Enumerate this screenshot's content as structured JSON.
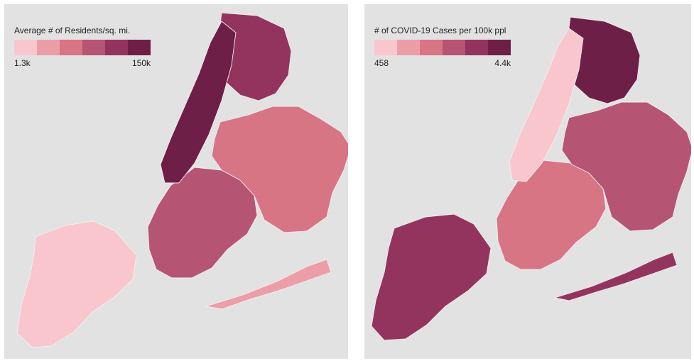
{
  "maps": [
    {
      "legend": {
        "title": "Average # of Residents/sq. mi.",
        "min_label": "1.3k",
        "max_label": "150k",
        "colors": [
          "#f8c6cc",
          "#ec9ea8",
          "#d87585",
          "#b65473",
          "#93345e",
          "#6e1f47"
        ]
      },
      "borough_levels": {
        "staten_island": 0,
        "rockaways": 1,
        "queens": 2,
        "brooklyn": 3,
        "bronx": 4,
        "manhattan": 5
      }
    },
    {
      "legend": {
        "title": "# of COVID-19 Cases per 100k ppl",
        "min_label": "458",
        "max_label": "4.4k",
        "colors": [
          "#f8c6cc",
          "#ec9ea8",
          "#d87585",
          "#b65473",
          "#93345e",
          "#6e1f47"
        ]
      },
      "borough_levels": {
        "staten_island": 4,
        "rockaways": 4,
        "queens": 3,
        "brooklyn": 2,
        "bronx": 5,
        "manhattan": 0
      }
    }
  ]
}
